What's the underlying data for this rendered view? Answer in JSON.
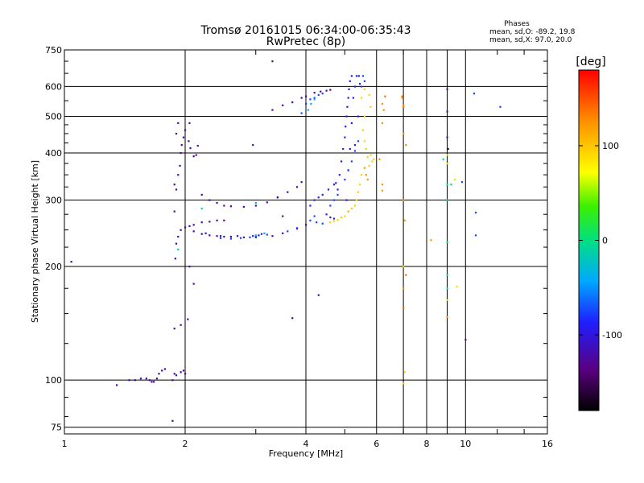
{
  "chart_data": {
    "type": "scatter",
    "title": "Tromsø 20161015 06:34:00-06:35:43",
    "subtitle": "RwPretec (8p)",
    "stats": {
      "heading": "Phases",
      "line_o": "mean, sd,O: -89.2, 19.8",
      "line_x": "mean, sd,X: 97.0, 20.0"
    },
    "xlabel": "Frequency [MHz]",
    "ylabel": "Stationary phase Virtual Height [km]",
    "x_scale": "log2",
    "y_scale": "log",
    "xlim": [
      1,
      16
    ],
    "ylim": [
      72,
      750
    ],
    "x_ticks": [
      1,
      2,
      4,
      6,
      8,
      10,
      16
    ],
    "x_tick_labels": [
      "1",
      "2",
      "4",
      "6",
      "8",
      "10",
      "16"
    ],
    "y_ticks": [
      75,
      100,
      200,
      300,
      400,
      500,
      600,
      750
    ],
    "y_tick_labels": [
      "75",
      "100",
      "200",
      "300",
      "400",
      "500",
      "600",
      "750"
    ],
    "grid": true,
    "colorbar": {
      "label": "[deg]",
      "min": -180,
      "max": 180,
      "ticks": [
        100,
        0,
        -100
      ],
      "tick_labels": [
        "100",
        "0",
        "-100"
      ]
    },
    "series": [
      {
        "phase": -125,
        "points": [
          [
            1.86,
            100
          ],
          [
            1.88,
            104
          ],
          [
            1.9,
            103
          ],
          [
            1.95,
            105
          ],
          [
            1.98,
            106
          ],
          [
            2.0,
            104
          ],
          [
            1.55,
            101
          ],
          [
            1.6,
            101
          ],
          [
            1.63,
            100
          ],
          [
            1.65,
            99
          ],
          [
            1.67,
            99
          ],
          [
            1.7,
            101
          ],
          [
            1.72,
            104
          ],
          [
            1.75,
            106
          ],
          [
            1.78,
            107
          ],
          [
            1.45,
            100
          ],
          [
            1.5,
            100
          ],
          [
            1.35,
            97
          ],
          [
            1.04,
            206
          ],
          [
            1.86,
            78
          ],
          [
            1.89,
            210
          ],
          [
            1.9,
            230
          ],
          [
            1.92,
            240
          ],
          [
            1.95,
            250
          ],
          [
            2.0,
            254
          ],
          [
            2.05,
            256
          ],
          [
            2.1,
            258
          ],
          [
            2.2,
            262
          ],
          [
            2.3,
            263
          ],
          [
            2.4,
            265
          ],
          [
            2.5,
            265
          ],
          [
            1.9,
            320
          ],
          [
            1.92,
            350
          ],
          [
            1.94,
            370
          ],
          [
            1.95,
            400
          ],
          [
            1.96,
            420
          ],
          [
            1.98,
            440
          ],
          [
            2.0,
            460
          ],
          [
            2.04,
            430
          ],
          [
            2.06,
            412
          ],
          [
            2.1,
            392
          ],
          [
            2.13,
            395
          ],
          [
            2.15,
            418
          ],
          [
            1.88,
            330
          ],
          [
            1.88,
            280
          ],
          [
            1.9,
            450
          ],
          [
            1.92,
            480
          ],
          [
            2.05,
            480
          ],
          [
            2.2,
            310
          ],
          [
            2.3,
            300
          ],
          [
            2.4,
            295
          ],
          [
            2.5,
            290
          ],
          [
            2.6,
            289
          ],
          [
            2.8,
            288
          ],
          [
            3.0,
            290
          ],
          [
            3.2,
            296
          ],
          [
            3.4,
            305
          ],
          [
            3.6,
            315
          ],
          [
            3.8,
            325
          ],
          [
            3.9,
            335
          ],
          [
            2.1,
            248
          ],
          [
            2.2,
            244
          ],
          [
            2.3,
            242
          ],
          [
            2.4,
            241
          ],
          [
            2.5,
            240
          ],
          [
            2.6,
            240
          ],
          [
            2.8,
            239
          ],
          [
            3.0,
            239
          ],
          [
            3.3,
            241
          ],
          [
            3.5,
            245
          ],
          [
            3.8,
            252
          ],
          [
            4.0,
            258
          ],
          [
            3.3,
            520
          ],
          [
            3.5,
            535
          ],
          [
            3.7,
            545
          ],
          [
            3.9,
            560
          ],
          [
            4.0,
            565
          ],
          [
            4.2,
            578
          ],
          [
            4.35,
            582
          ],
          [
            4.5,
            585
          ],
          [
            4.6,
            588
          ],
          [
            3.4,
            305
          ],
          [
            3.5,
            272
          ],
          [
            3.3,
            700
          ],
          [
            2.05,
            200
          ],
          [
            2.1,
            180
          ],
          [
            2.03,
            145
          ],
          [
            1.95,
            140
          ],
          [
            1.88,
            137
          ],
          [
            3.7,
            146
          ],
          [
            2.95,
            420
          ],
          [
            4.3,
            168
          ],
          [
            9.0,
            590
          ],
          [
            9.0,
            515
          ],
          [
            9.0,
            440
          ],
          [
            9.05,
            410
          ],
          [
            10.0,
            128
          ]
        ]
      },
      {
        "phase": -95,
        "points": [
          [
            4.8,
            320
          ],
          [
            4.85,
            350
          ],
          [
            4.9,
            380
          ],
          [
            4.95,
            410
          ],
          [
            5.0,
            440
          ],
          [
            5.02,
            470
          ],
          [
            5.05,
            500
          ],
          [
            5.07,
            530
          ],
          [
            5.1,
            560
          ],
          [
            5.12,
            590
          ],
          [
            5.15,
            620
          ],
          [
            5.2,
            640
          ],
          [
            5.05,
            300
          ],
          [
            5.1,
            280
          ],
          [
            4.6,
            270
          ],
          [
            4.7,
            268
          ],
          [
            4.5,
            275
          ],
          [
            5.3,
            600
          ],
          [
            5.35,
            640
          ],
          [
            5.25,
            560
          ],
          [
            5.2,
            480
          ],
          [
            5.15,
            410
          ],
          [
            5.1,
            360
          ],
          [
            5.3,
            420
          ],
          [
            5.4,
            500
          ],
          [
            5.42,
            640
          ],
          [
            5.45,
            610
          ],
          [
            3.05,
            242
          ],
          [
            3.1,
            244
          ],
          [
            2.95,
            241
          ],
          [
            2.7,
            241
          ],
          [
            2.45,
            241
          ],
          [
            2.25,
            245
          ],
          [
            4.1,
            290
          ],
          [
            4.2,
            300
          ],
          [
            4.3,
            305
          ],
          [
            4.4,
            310
          ],
          [
            4.55,
            320
          ],
          [
            4.7,
            330
          ],
          [
            4.75,
            333
          ]
        ]
      },
      {
        "phase": -75,
        "points": [
          [
            4.1,
            265
          ],
          [
            4.2,
            272
          ],
          [
            4.25,
            262
          ],
          [
            4.4,
            260
          ],
          [
            4.6,
            290
          ],
          [
            4.7,
            300
          ],
          [
            4.8,
            310
          ],
          [
            5.0,
            340
          ],
          [
            5.1,
            360
          ],
          [
            5.2,
            380
          ],
          [
            5.3,
            405
          ],
          [
            5.4,
            430
          ],
          [
            5.5,
            600
          ],
          [
            5.55,
            640
          ],
          [
            5.6,
            620
          ],
          [
            3.9,
            510
          ],
          [
            4.0,
            540
          ],
          [
            4.1,
            555
          ],
          [
            4.2,
            560
          ],
          [
            4.3,
            570
          ],
          [
            4.4,
            575
          ],
          [
            2.45,
            238
          ],
          [
            2.6,
            237
          ],
          [
            2.75,
            238
          ],
          [
            2.9,
            239
          ],
          [
            3.0,
            240
          ],
          [
            3.2,
            243
          ],
          [
            3.6,
            248
          ],
          [
            3.8,
            253
          ],
          [
            10.5,
            575
          ],
          [
            10.6,
            242
          ],
          [
            10.6,
            278
          ],
          [
            9.8,
            335
          ],
          [
            12.2,
            530
          ]
        ]
      },
      {
        "phase": -40,
        "points": [
          [
            3.0,
            242
          ],
          [
            3.15,
            245
          ],
          [
            4.05,
            520
          ],
          [
            4.12,
            540
          ],
          [
            4.2,
            555
          ],
          [
            3.0,
            295
          ]
        ]
      },
      {
        "phase": 0,
        "points": [
          [
            2.2,
            285
          ],
          [
            1.92,
            222
          ],
          [
            9.0,
            330
          ],
          [
            9.0,
            300
          ],
          [
            9.0,
            190
          ],
          [
            9.0,
            175
          ],
          [
            9.2,
            330
          ],
          [
            8.8,
            385
          ],
          [
            9.0,
            232
          ]
        ]
      },
      {
        "phase": 60,
        "points": [
          [
            9.0,
            395
          ],
          [
            9.0,
            375
          ],
          [
            9.0,
            163
          ],
          [
            9.5,
            177
          ],
          [
            9.4,
            340
          ]
        ]
      },
      {
        "phase": 95,
        "points": [
          [
            5.55,
            460
          ],
          [
            5.6,
            430
          ],
          [
            5.65,
            410
          ],
          [
            5.7,
            390
          ],
          [
            5.75,
            370
          ],
          [
            5.5,
            350
          ],
          [
            5.45,
            330
          ],
          [
            5.4,
            315
          ],
          [
            5.35,
            300
          ],
          [
            5.3,
            290
          ],
          [
            5.2,
            285
          ],
          [
            5.1,
            280
          ],
          [
            5.0,
            272
          ],
          [
            4.9,
            270
          ],
          [
            4.8,
            266
          ],
          [
            4.7,
            264
          ],
          [
            4.6,
            262
          ],
          [
            5.6,
            500
          ],
          [
            5.8,
            395
          ],
          [
            5.85,
            380
          ],
          [
            5.9,
            385
          ],
          [
            5.5,
            560
          ],
          [
            5.6,
            590
          ],
          [
            5.75,
            570
          ],
          [
            5.8,
            530
          ],
          [
            7.0,
            200
          ],
          [
            7.05,
            105
          ],
          [
            7.0,
            98
          ]
        ]
      },
      {
        "phase": 125,
        "points": [
          [
            5.6,
            365
          ],
          [
            5.65,
            350
          ],
          [
            5.7,
            340
          ],
          [
            6.1,
            385
          ],
          [
            6.2,
            540
          ],
          [
            6.25,
            520
          ],
          [
            6.2,
            480
          ],
          [
            6.2,
            330
          ],
          [
            6.2,
            318
          ],
          [
            6.95,
            560
          ],
          [
            7.0,
            535
          ],
          [
            7.0,
            450
          ],
          [
            7.1,
            420
          ],
          [
            7.0,
            300
          ],
          [
            7.05,
            265
          ],
          [
            8.2,
            235
          ],
          [
            7.0,
            175
          ],
          [
            9.0,
            147
          ]
        ]
      },
      {
        "phase": 140,
        "points": [
          [
            6.3,
            565
          ],
          [
            6.95,
            565
          ],
          [
            7.0,
            155
          ],
          [
            7.0,
            530
          ],
          [
            7.1,
            190
          ]
        ]
      }
    ]
  }
}
